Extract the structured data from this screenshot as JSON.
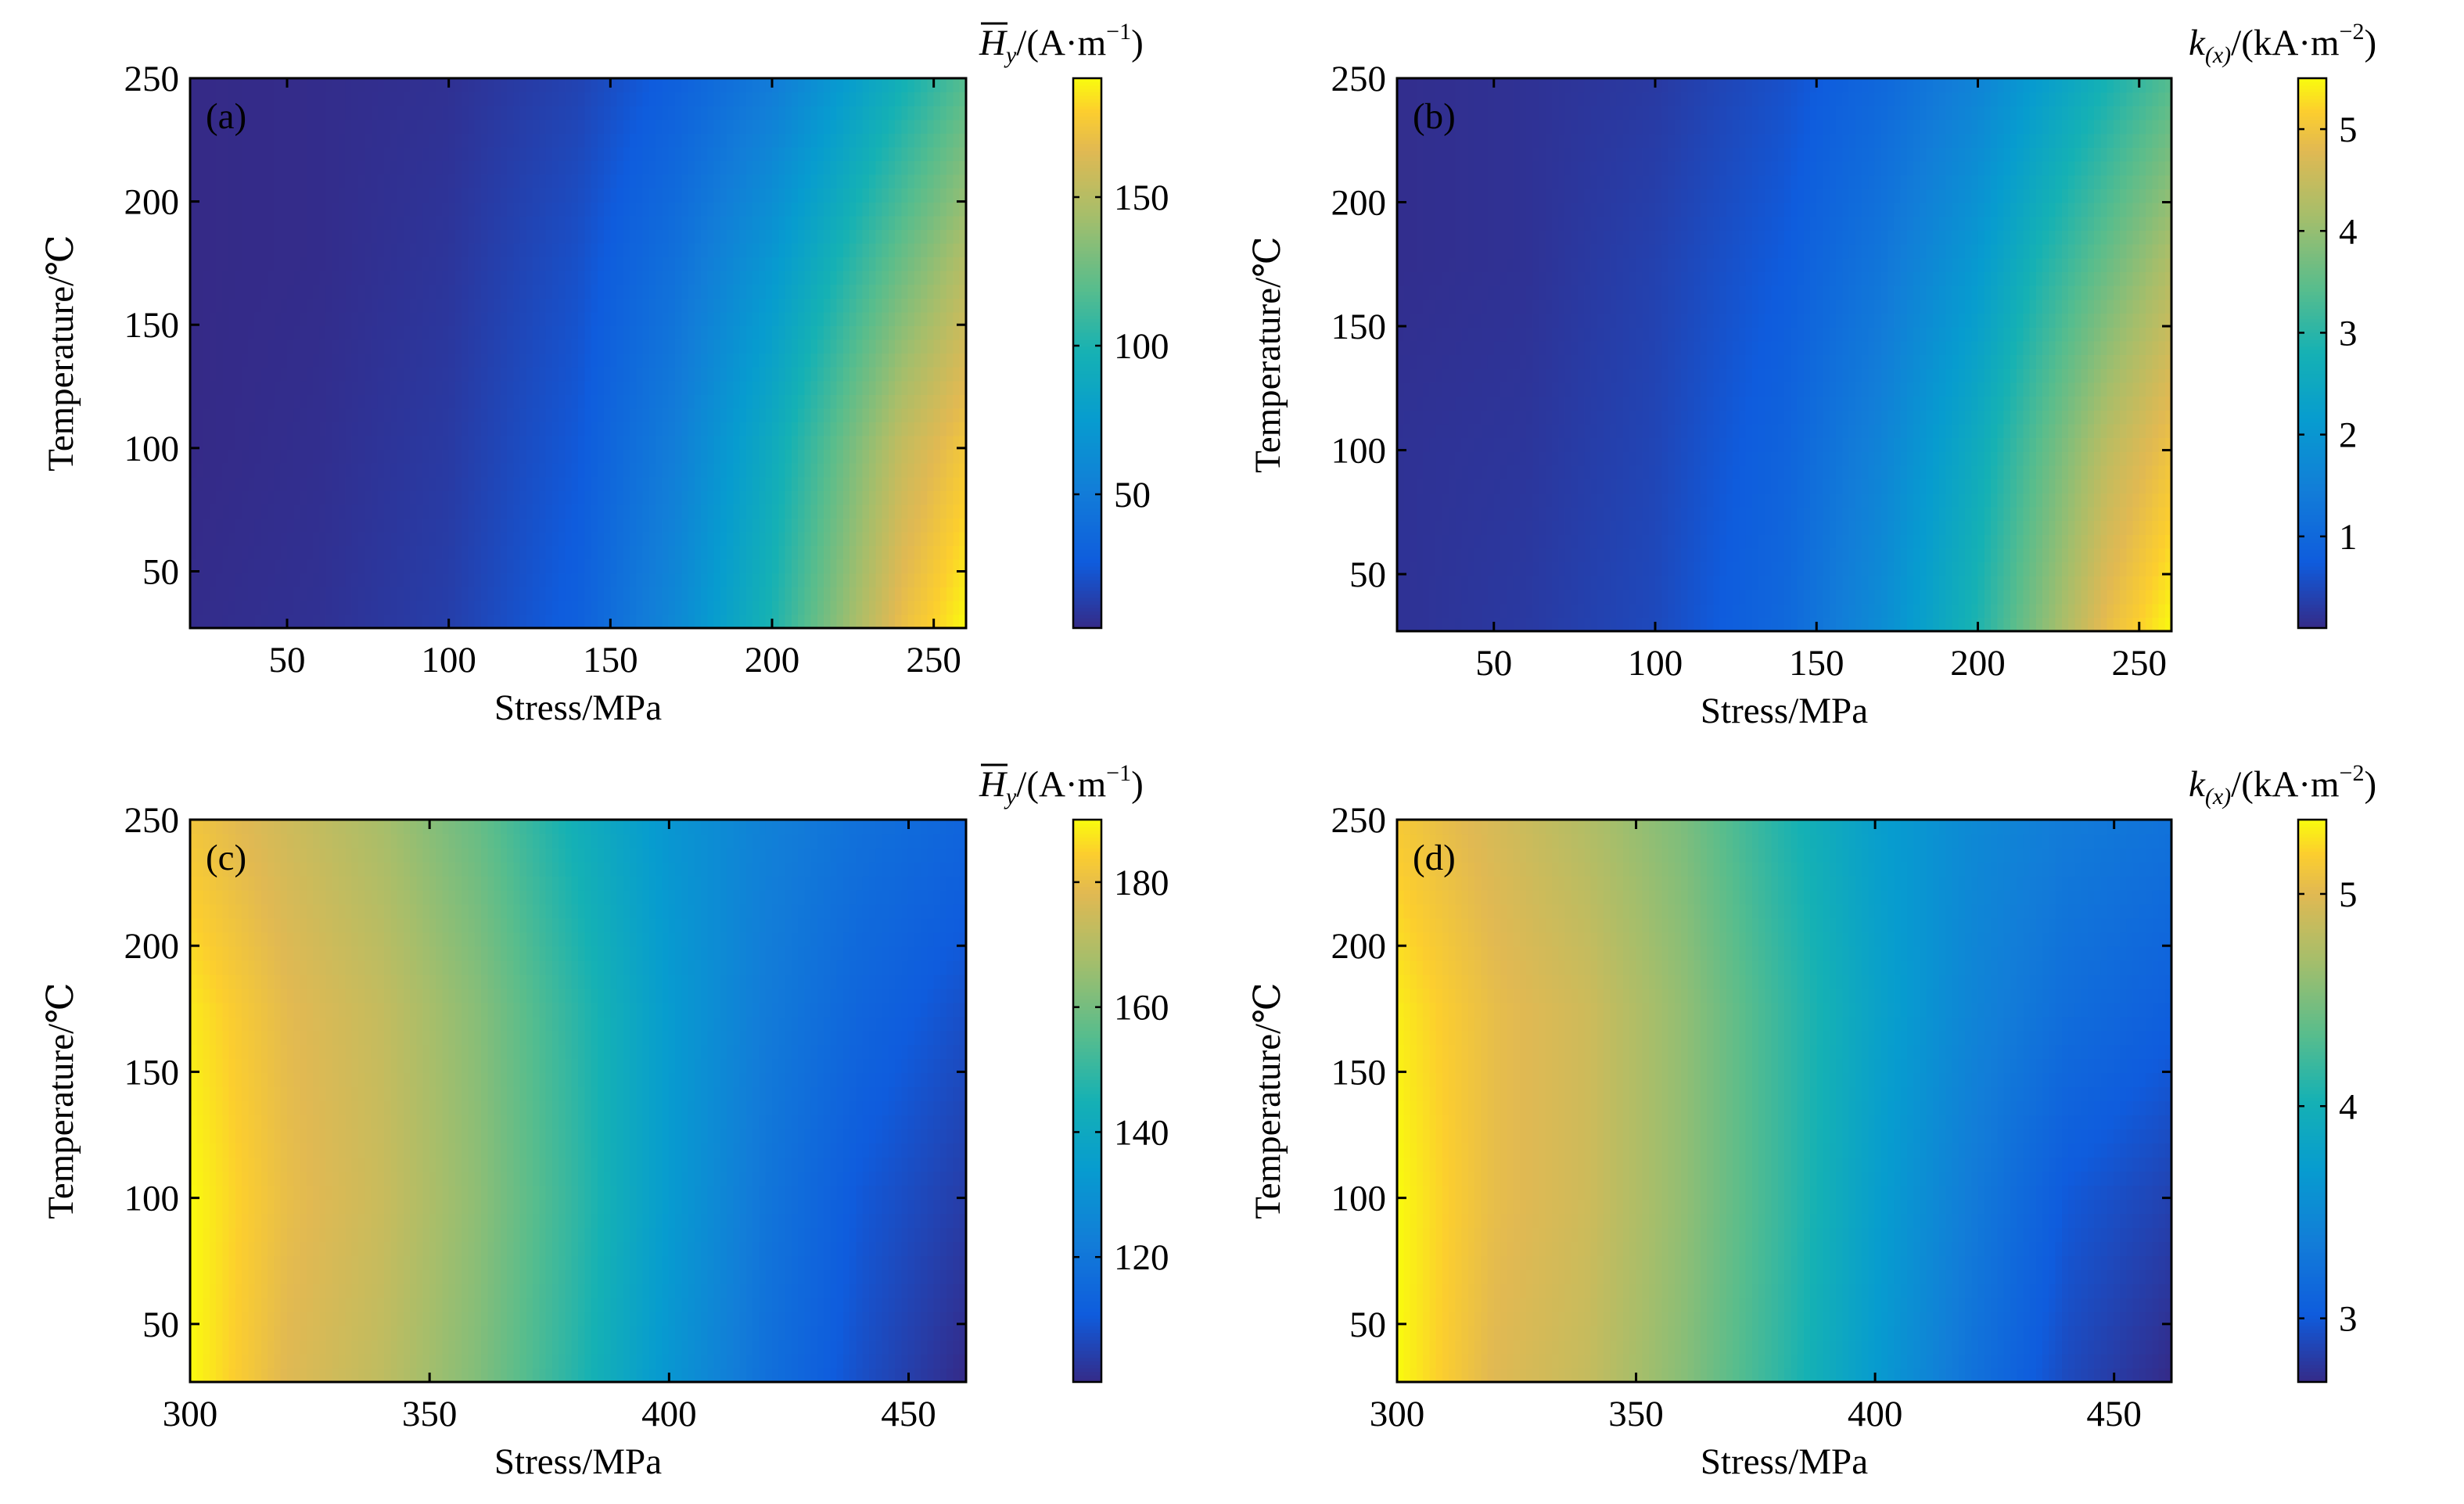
{
  "chart_data": [
    {
      "type": "heatmap",
      "panel_label": "(a)",
      "xlabel": "Stress/MPa",
      "ylabel": "Temperature/℃",
      "xlim": [
        20,
        260
      ],
      "ylim": [
        27,
        250
      ],
      "xticks": [
        50,
        100,
        150,
        200,
        250
      ],
      "yticks": [
        50,
        100,
        150,
        200,
        250
      ],
      "colorbar": {
        "title_var": "H",
        "title_sub": "y",
        "title_overline": true,
        "title_unit": "/(A·m",
        "title_exp": "−1",
        "title_close": ")",
        "range": [
          5,
          190
        ],
        "ticks": [
          50,
          100,
          150
        ]
      },
      "field": {
        "x": [
          20,
          60,
          100,
          140,
          170,
          200,
          220,
          240,
          260
        ],
        "y": [
          27,
          100,
          175,
          250
        ],
        "z": [
          [
            6,
            8,
            14,
            30,
            60,
            100,
            135,
            170,
            190
          ],
          [
            5,
            7,
            12,
            26,
            52,
            90,
            122,
            155,
            175
          ],
          [
            5,
            6,
            10,
            22,
            42,
            72,
            98,
            125,
            150
          ],
          [
            5,
            6,
            8,
            16,
            30,
            50,
            72,
            95,
            118
          ]
        ]
      }
    },
    {
      "type": "heatmap",
      "panel_label": "(b)",
      "xlabel": "Stress/MPa",
      "ylabel": "Temperature/℃",
      "xlim": [
        20,
        260
      ],
      "ylim": [
        27,
        250
      ],
      "xticks": [
        50,
        100,
        150,
        200,
        250
      ],
      "yticks": [
        50,
        100,
        150,
        200,
        250
      ],
      "colorbar": {
        "title_var": "k",
        "title_sub": "(x)",
        "title_overline": false,
        "title_unit": "/(kA·m",
        "title_exp": "−2",
        "title_close": ")",
        "range": [
          0.1,
          5.5
        ],
        "ticks": [
          1,
          2,
          3,
          4,
          5
        ]
      },
      "field": {
        "x": [
          20,
          60,
          100,
          140,
          170,
          200,
          220,
          240,
          260
        ],
        "y": [
          27,
          100,
          175,
          250
        ],
        "z": [
          [
            0.2,
            0.3,
            0.5,
            1.0,
            1.8,
            2.9,
            3.9,
            4.9,
            5.5
          ],
          [
            0.2,
            0.25,
            0.45,
            0.9,
            1.6,
            2.6,
            3.5,
            4.4,
            5.0
          ],
          [
            0.15,
            0.2,
            0.4,
            0.75,
            1.3,
            2.1,
            2.9,
            3.6,
            4.3
          ],
          [
            0.15,
            0.2,
            0.3,
            0.6,
            1.0,
            1.6,
            2.2,
            2.8,
            3.4
          ]
        ]
      }
    },
    {
      "type": "heatmap",
      "panel_label": "(c)",
      "xlabel": "Stress/MPa",
      "ylabel": "Temperature/℃",
      "xlim": [
        300,
        462
      ],
      "ylim": [
        27,
        250
      ],
      "xticks": [
        300,
        350,
        400,
        450
      ],
      "yticks": [
        50,
        100,
        150,
        200,
        250
      ],
      "colorbar": {
        "title_var": "H",
        "title_sub": "y",
        "title_overline": true,
        "title_unit": "/(A·m",
        "title_exp": "−1",
        "title_close": ")",
        "range": [
          100,
          190
        ],
        "ticks": [
          120,
          140,
          160,
          180
        ]
      },
      "field": {
        "x": [
          300,
          320,
          340,
          360,
          380,
          400,
          420,
          440,
          462
        ],
        "y": [
          27,
          100,
          175,
          250
        ],
        "z": [
          [
            190,
            178,
            172,
            162,
            148,
            132,
            118,
            108,
            100
          ],
          [
            190,
            180,
            174,
            164,
            150,
            134,
            120,
            110,
            104
          ],
          [
            188,
            179,
            173,
            163,
            149,
            134,
            122,
            114,
            108
          ],
          [
            182,
            175,
            168,
            158,
            144,
            132,
            124,
            118,
            114
          ]
        ]
      }
    },
    {
      "type": "heatmap",
      "panel_label": "(d)",
      "xlabel": "Stress/MPa",
      "ylabel": "Temperature/℃",
      "xlim": [
        300,
        462
      ],
      "ylim": [
        27,
        250
      ],
      "xticks": [
        300,
        350,
        400,
        450
      ],
      "yticks": [
        50,
        100,
        150,
        200,
        250
      ],
      "colorbar": {
        "title_var": "k",
        "title_sub": "(x)",
        "title_overline": false,
        "title_unit": "/(kA·m",
        "title_exp": "−2",
        "title_close": ")",
        "range": [
          2.7,
          5.35
        ],
        "ticks": [
          3,
          4,
          5
        ]
      },
      "field": {
        "x": [
          300,
          320,
          340,
          360,
          380,
          400,
          420,
          440,
          462
        ],
        "y": [
          27,
          100,
          175,
          250
        ],
        "z": [
          [
            5.35,
            5.0,
            4.85,
            4.55,
            4.15,
            3.7,
            3.25,
            2.9,
            2.7
          ],
          [
            5.35,
            5.05,
            4.9,
            4.6,
            4.2,
            3.75,
            3.35,
            3.0,
            2.85
          ],
          [
            5.3,
            5.05,
            4.9,
            4.6,
            4.2,
            3.8,
            3.45,
            3.2,
            3.05
          ],
          [
            5.15,
            4.95,
            4.75,
            4.5,
            4.1,
            3.75,
            3.5,
            3.35,
            3.25
          ]
        ]
      }
    }
  ]
}
